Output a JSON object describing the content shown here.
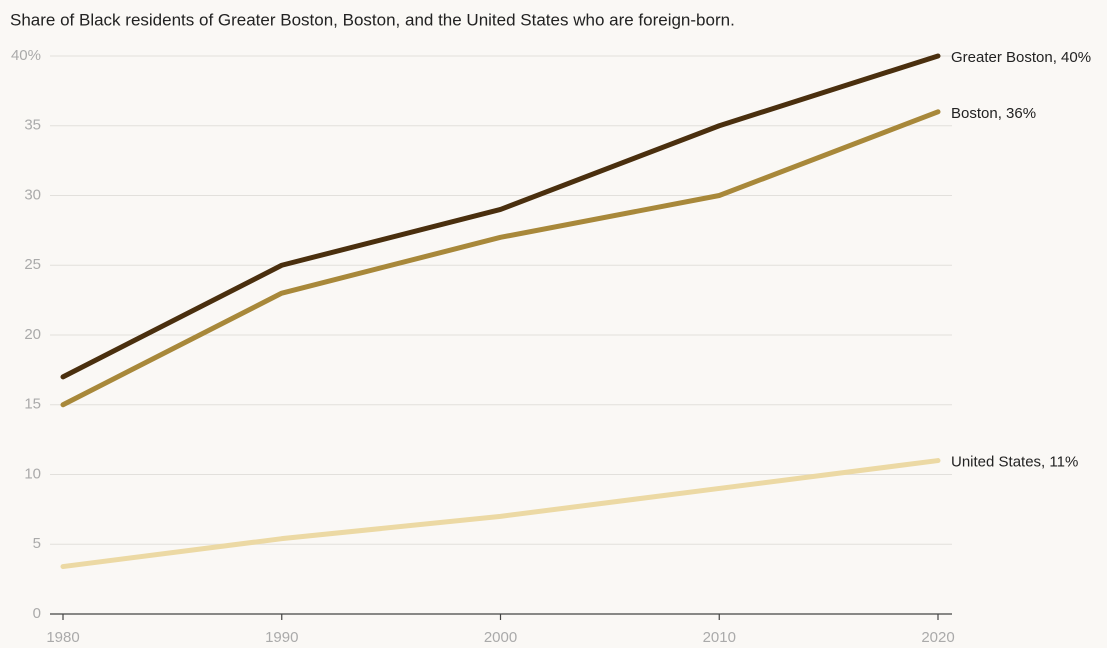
{
  "chart_data": {
    "type": "line",
    "title": "Share of Black residents of Greater Boston, Boston, and the United States who are foreign-born.",
    "x": [
      1980,
      1990,
      2000,
      2010,
      2020
    ],
    "series": [
      {
        "name": "Greater Boston, 40%",
        "color": "#4a2f0e",
        "values": [
          17,
          25,
          29,
          35,
          40
        ]
      },
      {
        "name": "Boston, 36%",
        "color": "#a8883a",
        "values": [
          15,
          23,
          27,
          30,
          36
        ]
      },
      {
        "name": "United States, 11%",
        "color": "#ecd9a4",
        "values": [
          3.4,
          5.4,
          7,
          9,
          11
        ]
      }
    ],
    "xlim": [
      1980,
      2020
    ],
    "xticks": [
      1980,
      1990,
      2000,
      2010,
      2020
    ],
    "ylim": [
      0,
      40
    ],
    "yticks": [
      0,
      5,
      10,
      15,
      20,
      25,
      30,
      35,
      {
        "value": 40,
        "label": "40%"
      }
    ],
    "grid": true
  }
}
